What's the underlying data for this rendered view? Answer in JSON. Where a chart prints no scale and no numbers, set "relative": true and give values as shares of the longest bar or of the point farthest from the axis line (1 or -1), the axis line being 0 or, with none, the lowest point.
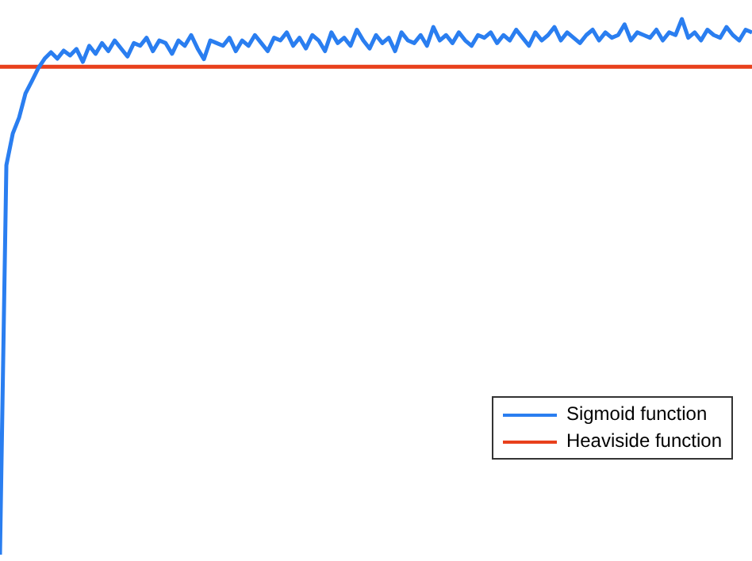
{
  "chart_data": {
    "type": "line",
    "relative": true,
    "legend": "bottom right",
    "grid": false,
    "marker": "none",
    "line_style": "solid",
    "categories": [
      null,
      null,
      null,
      null,
      null,
      null,
      null,
      null,
      null,
      null,
      null,
      null,
      null,
      null,
      null,
      null,
      null,
      null,
      null,
      null,
      null,
      null,
      null,
      null,
      null,
      null,
      null,
      null,
      null,
      null,
      null,
      null,
      null,
      null,
      null,
      null,
      null,
      null,
      null,
      null,
      null,
      null,
      null,
      null,
      null,
      null,
      null,
      null,
      null,
      null,
      null,
      null,
      null,
      null,
      null,
      null,
      null,
      null,
      null,
      null,
      null,
      null,
      null,
      null,
      null,
      null,
      null,
      null,
      null,
      null,
      null,
      null,
      null,
      null,
      null,
      null,
      null,
      null,
      null,
      null,
      null,
      null,
      null,
      null,
      null,
      null,
      null,
      null,
      null,
      null,
      null,
      null,
      null,
      null,
      null,
      null,
      null,
      null,
      null,
      null,
      null,
      null,
      null,
      null,
      null,
      null,
      null,
      null,
      null,
      null,
      null,
      null,
      null,
      null,
      null,
      null,
      null,
      null,
      null
    ],
    "series": [
      {
        "name": "Sigmoid function",
        "color": "#2a7ef0",
        "values": [
          0,
          0.727,
          0.786,
          0.816,
          0.861,
          0.884,
          0.908,
          0.926,
          0.938,
          0.926,
          0.941,
          0.932,
          0.944,
          0.92,
          0.95,
          0.935,
          0.955,
          0.94,
          0.96,
          0.945,
          0.93,
          0.955,
          0.95,
          0.965,
          0.94,
          0.96,
          0.955,
          0.935,
          0.96,
          0.95,
          0.97,
          0.945,
          0.925,
          0.96,
          0.955,
          0.95,
          0.965,
          0.94,
          0.96,
          0.95,
          0.97,
          0.955,
          0.94,
          0.965,
          0.96,
          0.975,
          0.95,
          0.965,
          0.945,
          0.97,
          0.96,
          0.94,
          0.975,
          0.955,
          0.965,
          0.95,
          0.98,
          0.96,
          0.945,
          0.97,
          0.955,
          0.965,
          0.94,
          0.975,
          0.96,
          0.955,
          0.97,
          0.95,
          0.985,
          0.96,
          0.97,
          0.955,
          0.975,
          0.96,
          0.95,
          0.97,
          0.965,
          0.975,
          0.955,
          0.97,
          0.96,
          0.98,
          0.965,
          0.95,
          0.975,
          0.96,
          0.97,
          0.985,
          0.96,
          0.975,
          0.965,
          0.955,
          0.97,
          0.98,
          0.96,
          0.975,
          0.965,
          0.97,
          0.99,
          0.96,
          0.975,
          0.97,
          0.965,
          0.98,
          0.96,
          0.975,
          0.97,
          1,
          0.965,
          0.975,
          0.96,
          0.98,
          0.97,
          0.965,
          0.985,
          0.97,
          0.96,
          0.98,
          0.975
        ]
      },
      {
        "name": "Heaviside function",
        "color": "#e8401c",
        "values": [
          0.911,
          0.911,
          0.911,
          0.911,
          0.911,
          0.911,
          0.911,
          0.911,
          0.911,
          0.911,
          0.911,
          0.911,
          0.911,
          0.911,
          0.911,
          0.911,
          0.911,
          0.911,
          0.911,
          0.911,
          0.911,
          0.911,
          0.911,
          0.911,
          0.911,
          0.911,
          0.911,
          0.911,
          0.911,
          0.911,
          0.911,
          0.911,
          0.911,
          0.911,
          0.911,
          0.911,
          0.911,
          0.911,
          0.911,
          0.911,
          0.911,
          0.911,
          0.911,
          0.911,
          0.911,
          0.911,
          0.911,
          0.911,
          0.911,
          0.911,
          0.911,
          0.911,
          0.911,
          0.911,
          0.911,
          0.911,
          0.911,
          0.911,
          0.911,
          0.911,
          0.911,
          0.911,
          0.911,
          0.911,
          0.911,
          0.911,
          0.911,
          0.911,
          0.911,
          0.911,
          0.911,
          0.911,
          0.911,
          0.911,
          0.911,
          0.911,
          0.911,
          0.911,
          0.911,
          0.911,
          0.911,
          0.911,
          0.911,
          0.911,
          0.911,
          0.911,
          0.911,
          0.911,
          0.911,
          0.911,
          0.911,
          0.911,
          0.911,
          0.911,
          0.911,
          0.911,
          0.911,
          0.911,
          0.911,
          0.911,
          0.911,
          0.911,
          0.911,
          0.911,
          0.911,
          0.911,
          0.911,
          0.911,
          0.911,
          0.911,
          0.911,
          0.911,
          0.911,
          0.911,
          0.911,
          0.911,
          0.911,
          0.911,
          0.911
        ]
      }
    ]
  }
}
